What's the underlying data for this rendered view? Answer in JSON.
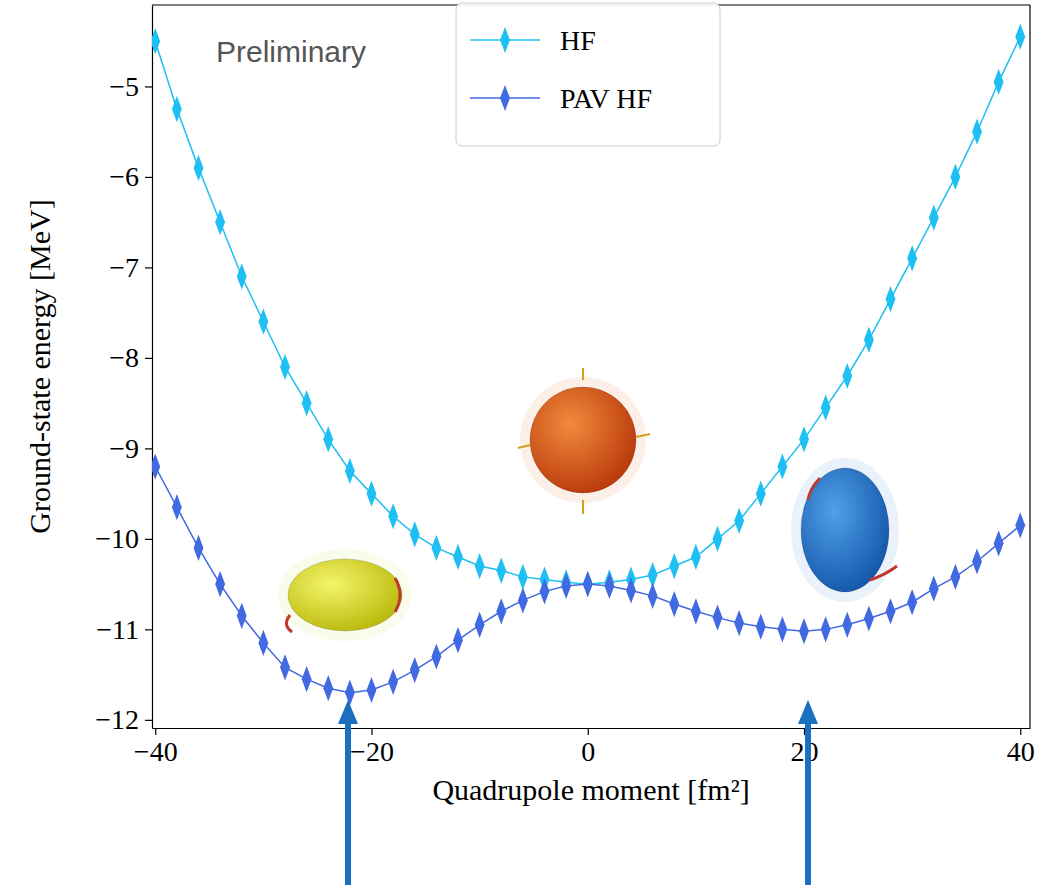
{
  "chart_data": {
    "type": "line",
    "annotation": "Preliminary",
    "x_label": "Quadrupole moment [fm²]",
    "y_label": "Ground-state energy [MeV]",
    "x": [
      -40,
      -38,
      -36,
      -34,
      -32,
      -30,
      -28,
      -26,
      -24,
      -22,
      -20,
      -18,
      -16,
      -14,
      -12,
      -10,
      -8,
      -6,
      -4,
      -2,
      0,
      2,
      4,
      6,
      8,
      10,
      12,
      14,
      16,
      18,
      20,
      22,
      24,
      26,
      28,
      30,
      32,
      34,
      36,
      38,
      40
    ],
    "series": [
      {
        "name": "HF",
        "color": "#1ebff2",
        "marker": "diamond",
        "values": [
          -4.5,
          -5.25,
          -5.9,
          -6.5,
          -7.1,
          -7.6,
          -8.1,
          -8.5,
          -8.9,
          -9.25,
          -9.5,
          -9.75,
          -9.95,
          -10.1,
          -10.2,
          -10.3,
          -10.35,
          -10.42,
          -10.45,
          -10.48,
          -10.5,
          -10.48,
          -10.45,
          -10.4,
          -10.3,
          -10.2,
          -10.0,
          -9.8,
          -9.5,
          -9.2,
          -8.9,
          -8.55,
          -8.2,
          -7.8,
          -7.35,
          -6.9,
          -6.45,
          -6.0,
          -5.5,
          -4.95,
          -4.45
        ]
      },
      {
        "name": "PAV HF",
        "color": "#4169e1",
        "marker": "diamond",
        "values": [
          -9.2,
          -9.65,
          -10.1,
          -10.5,
          -10.85,
          -11.15,
          -11.42,
          -11.55,
          -11.65,
          -11.7,
          -11.67,
          -11.58,
          -11.45,
          -11.3,
          -11.12,
          -10.95,
          -10.8,
          -10.68,
          -10.58,
          -10.52,
          -10.5,
          -10.52,
          -10.57,
          -10.63,
          -10.72,
          -10.8,
          -10.87,
          -10.93,
          -10.97,
          -11.0,
          -11.02,
          -11.0,
          -10.95,
          -10.88,
          -10.8,
          -10.7,
          -10.55,
          -10.42,
          -10.25,
          -10.05,
          -9.85
        ]
      }
    ],
    "xlim": [
      -40.3,
      40.9
    ],
    "ylim": [
      -12.09,
      -4.1
    ],
    "xticks": [
      {
        "value": -40,
        "label": "−40"
      },
      {
        "value": -20,
        "label": "−20"
      },
      0,
      20,
      40
    ],
    "yticks": [
      {
        "value": -12,
        "label": "−12"
      },
      {
        "value": -11,
        "label": "−11"
      },
      {
        "value": -10,
        "label": "−10"
      },
      {
        "value": -9,
        "label": "−9"
      },
      {
        "value": -8,
        "label": "−8"
      },
      {
        "value": -7,
        "label": "−7"
      },
      {
        "value": -6,
        "label": "−6"
      },
      {
        "value": -5,
        "label": "−5"
      }
    ],
    "legend": "upper center",
    "grid": false
  }
}
